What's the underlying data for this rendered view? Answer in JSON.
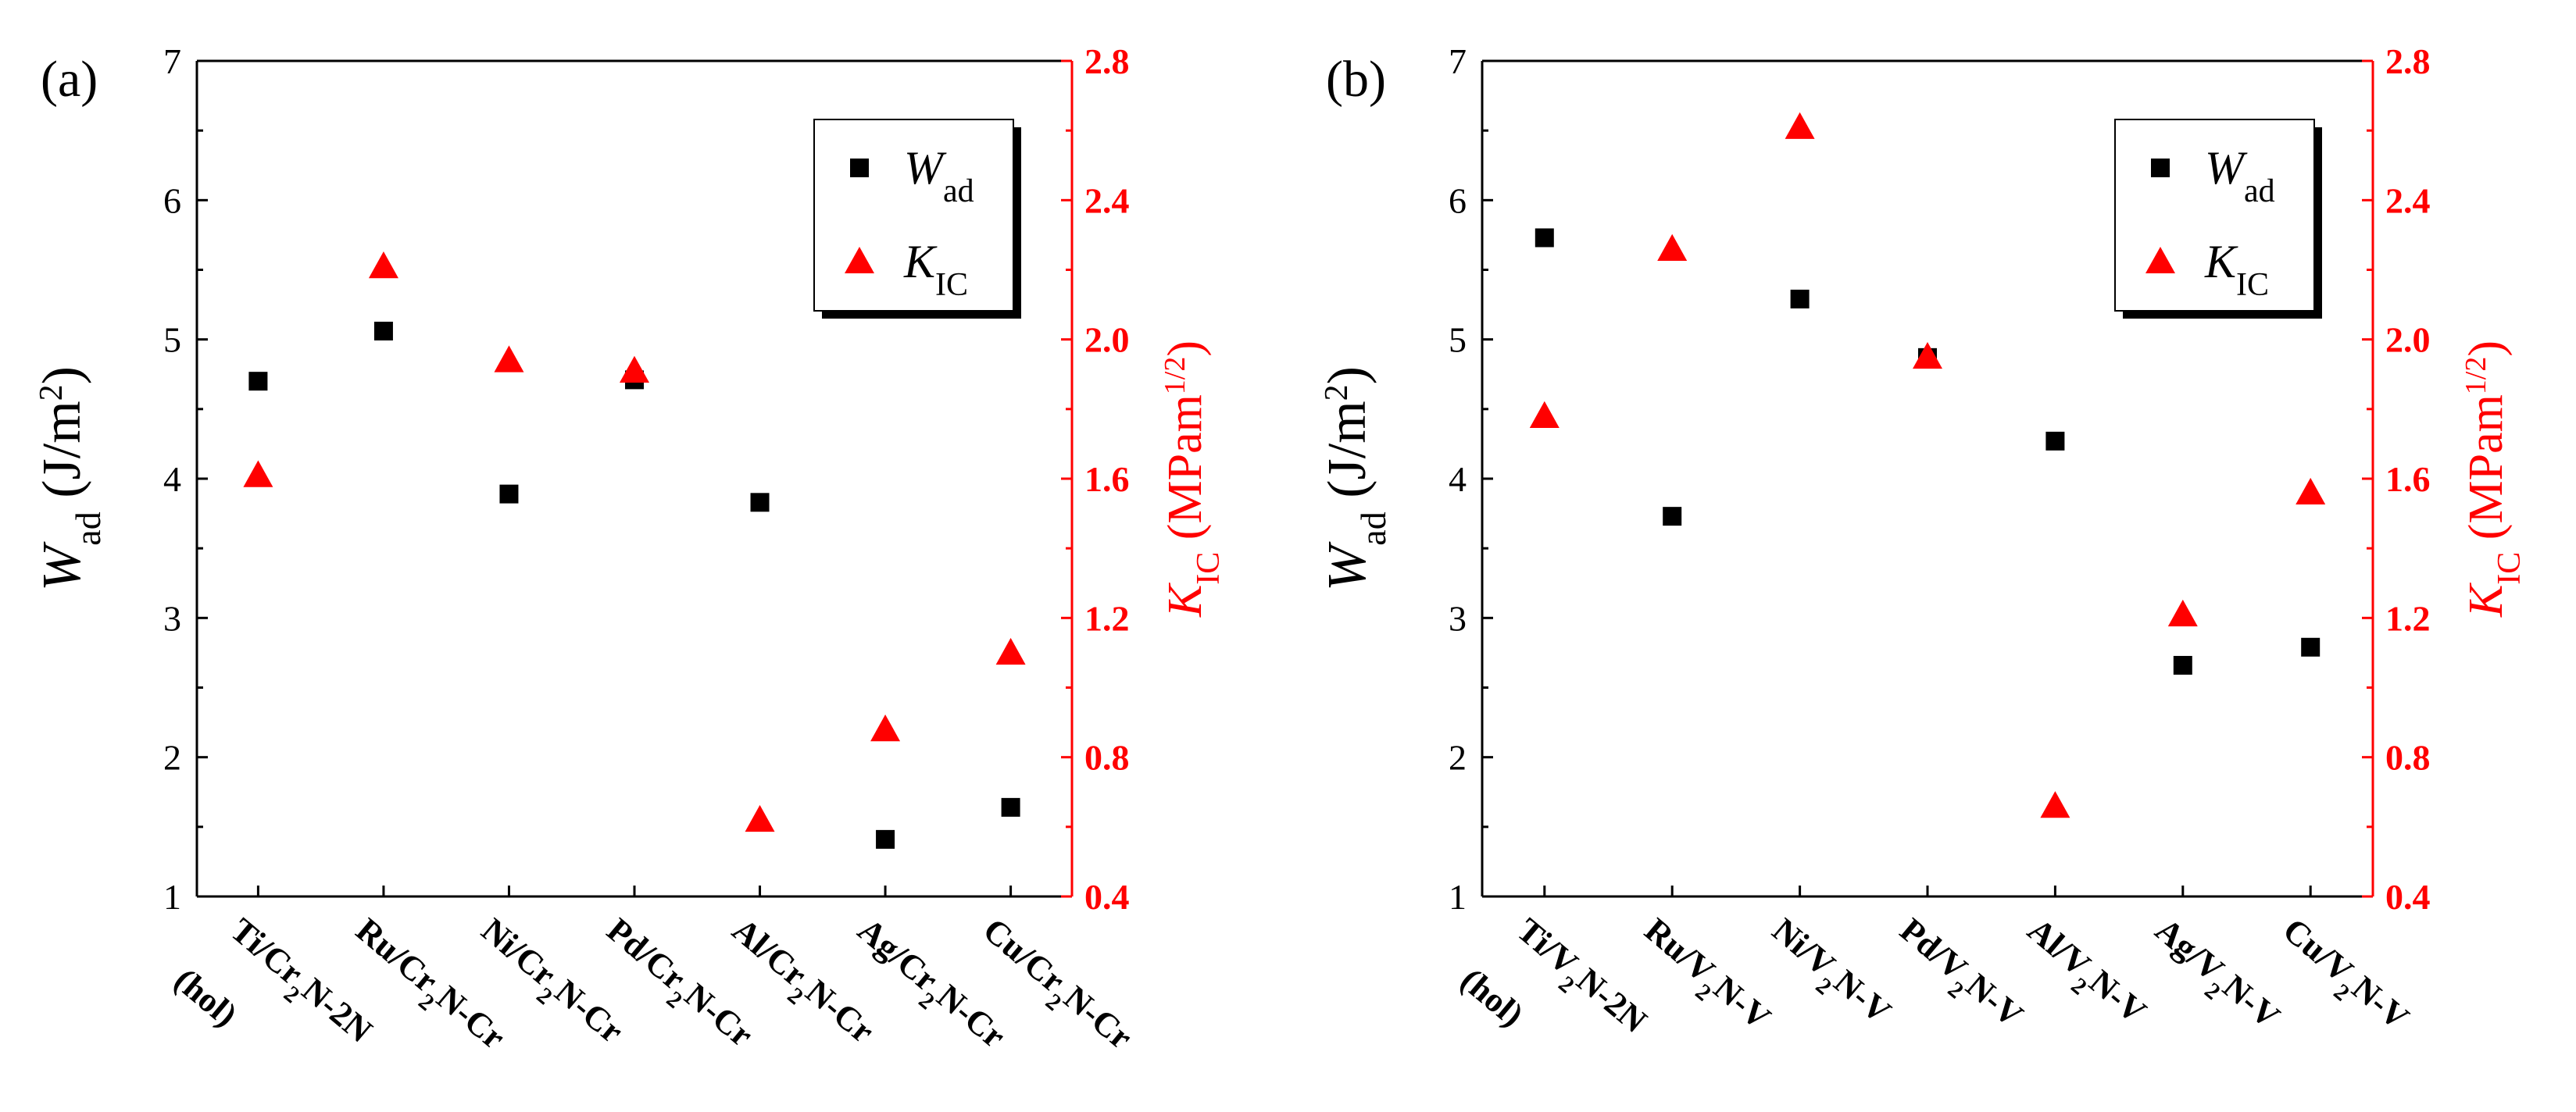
{
  "chart_data": [
    {
      "type": "scatter",
      "panel_label": "(a)",
      "categories": [
        {
          "parts": [
            [
              "Ti/Cr",
              ""
            ],
            [
              "2",
              "sub"
            ],
            [
              "N-2N",
              ""
            ]
          ],
          "extra": "(hol)"
        },
        {
          "parts": [
            [
              "Ru/Cr",
              ""
            ],
            [
              "2",
              "sub"
            ],
            [
              "N-Cr",
              ""
            ]
          ]
        },
        {
          "parts": [
            [
              "Ni/Cr",
              ""
            ],
            [
              "2",
              "sub"
            ],
            [
              "N-Cr",
              ""
            ]
          ]
        },
        {
          "parts": [
            [
              "Pd/Cr",
              ""
            ],
            [
              "2",
              "sub"
            ],
            [
              "N-Cr",
              ""
            ]
          ]
        },
        {
          "parts": [
            [
              "Al/Cr",
              ""
            ],
            [
              "2",
              "sub"
            ],
            [
              "N-Cr",
              ""
            ]
          ]
        },
        {
          "parts": [
            [
              "Ag/Cr",
              ""
            ],
            [
              "2",
              "sub"
            ],
            [
              "N-Cr",
              ""
            ]
          ]
        },
        {
          "parts": [
            [
              "Cu/Cr",
              ""
            ],
            [
              "2",
              "sub"
            ],
            [
              "N-Cr",
              ""
            ]
          ]
        }
      ],
      "series": [
        {
          "name": "W_ad",
          "legend_main": "W",
          "legend_sub": "ad",
          "axis": "left",
          "marker": "square",
          "color": "#000000",
          "values": [
            4.7,
            5.06,
            3.89,
            4.71,
            3.83,
            1.41,
            1.64
          ]
        },
        {
          "name": "K_IC",
          "legend_main": "K",
          "legend_sub": "IC",
          "axis": "right",
          "marker": "triangle",
          "color": "#ff0000",
          "values": [
            1.61,
            2.21,
            1.94,
            1.91,
            0.62,
            0.88,
            1.1
          ]
        }
      ],
      "ylim_left": [
        1,
        7
      ],
      "yticks_left": [
        "1",
        "2",
        "3",
        "4",
        "5",
        "6",
        "7"
      ],
      "ylim_right": [
        0.4,
        2.8
      ],
      "yticks_right": [
        "0.4",
        "0.8",
        "1.2",
        "1.6",
        "2.0",
        "2.4",
        "2.8"
      ],
      "ylabel_left": {
        "main": "W",
        "sub": "ad",
        "rest": " (J/m",
        "sup": "2",
        "end": ")"
      },
      "ylabel_right": {
        "main": "K",
        "sub": "IC",
        "rest": " (MPam",
        "sup": "1/2",
        "end": ")"
      },
      "legend_position": "top-right"
    },
    {
      "type": "scatter",
      "panel_label": "(b)",
      "categories": [
        {
          "parts": [
            [
              "Ti/V",
              ""
            ],
            [
              "2",
              "sub"
            ],
            [
              "N-2N",
              ""
            ]
          ],
          "extra": "(hol)"
        },
        {
          "parts": [
            [
              "Ru/V",
              ""
            ],
            [
              "2",
              "sub"
            ],
            [
              "N-V",
              ""
            ]
          ]
        },
        {
          "parts": [
            [
              "Ni/V",
              ""
            ],
            [
              "2",
              "sub"
            ],
            [
              "N-V",
              ""
            ]
          ]
        },
        {
          "parts": [
            [
              "Pd/V",
              ""
            ],
            [
              "2",
              "sub"
            ],
            [
              "N-V",
              ""
            ]
          ]
        },
        {
          "parts": [
            [
              "Al/V",
              ""
            ],
            [
              "2",
              "sub"
            ],
            [
              "N-V",
              ""
            ]
          ]
        },
        {
          "parts": [
            [
              "Ag/V",
              ""
            ],
            [
              "2",
              "sub"
            ],
            [
              "N-V",
              ""
            ]
          ]
        },
        {
          "parts": [
            [
              "Cu/V",
              ""
            ],
            [
              "2",
              "sub"
            ],
            [
              "N-V",
              ""
            ]
          ]
        }
      ],
      "series": [
        {
          "name": "W_ad",
          "legend_main": "W",
          "legend_sub": "ad",
          "axis": "left",
          "marker": "square",
          "color": "#000000",
          "values": [
            5.73,
            3.73,
            5.29,
            4.87,
            4.27,
            2.66,
            2.79
          ]
        },
        {
          "name": "K_IC",
          "legend_main": "K",
          "legend_sub": "IC",
          "axis": "right",
          "marker": "triangle",
          "color": "#ff0000",
          "values": [
            1.78,
            2.26,
            2.61,
            1.95,
            0.66,
            1.21,
            1.56
          ]
        }
      ],
      "ylim_left": [
        1,
        7
      ],
      "yticks_left": [
        "1",
        "2",
        "3",
        "4",
        "5",
        "6",
        "7"
      ],
      "ylim_right": [
        0.4,
        2.8
      ],
      "yticks_right": [
        "0.4",
        "0.8",
        "1.2",
        "1.6",
        "2.0",
        "2.4",
        "2.8"
      ],
      "ylabel_left": {
        "main": "W",
        "sub": "ad",
        "rest": " (J/m",
        "sup": "2",
        "end": ")"
      },
      "ylabel_right": {
        "main": "K",
        "sub": "IC",
        "rest": " (MPam",
        "sup": "1/2",
        "end": ")"
      },
      "legend_position": "top-right"
    }
  ]
}
